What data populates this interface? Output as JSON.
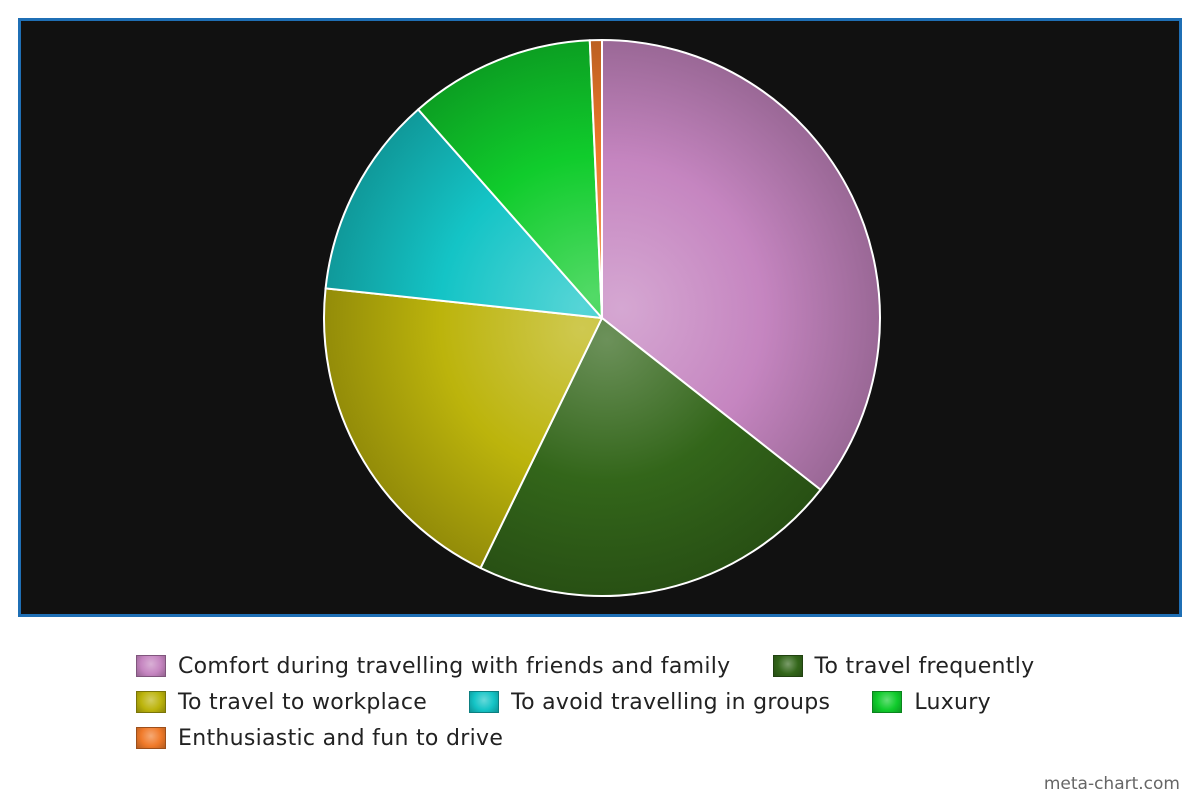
{
  "chart_data": {
    "type": "pie",
    "title": "",
    "slices": [
      {
        "label": "Comfort during travelling with friends and family",
        "value": 35.6,
        "color": "#c585c0"
      },
      {
        "label": "To travel frequently",
        "value": 21.6,
        "color": "#33661a"
      },
      {
        "label": "To travel to workplace",
        "value": 19.5,
        "color": "#bcb40c"
      },
      {
        "label": "To avoid travelling in groups",
        "value": 11.8,
        "color": "#14c4c6"
      },
      {
        "label": "Luxury",
        "value": 10.8,
        "color": "#10cc2c"
      },
      {
        "label": "Enthusiastic and fun to drive",
        "value": 0.7,
        "color": "#f07a2a"
      }
    ],
    "legend_position": "bottom",
    "background": "#111111",
    "border_color": "#1f6fb5"
  },
  "credit": "meta-chart.com"
}
